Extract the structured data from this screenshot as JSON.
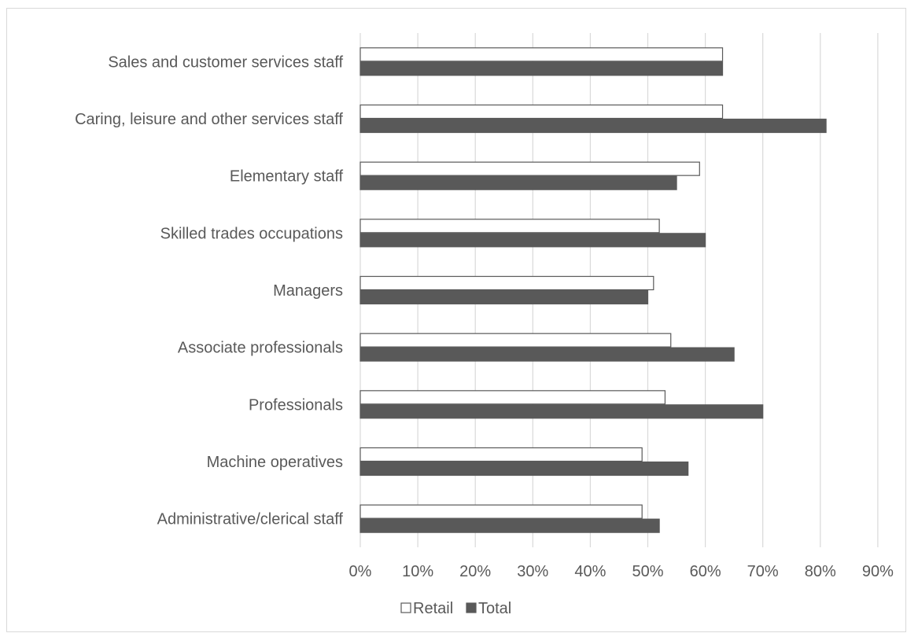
{
  "chart_data": {
    "type": "bar",
    "orientation": "horizontal",
    "categories": [
      "Sales and customer services staff",
      "Caring, leisure and other services staff",
      "Elementary staff",
      "Skilled trades occupations",
      "Managers",
      "Associate professionals",
      "Professionals",
      "Machine operatives",
      "Administrative/clerical staff"
    ],
    "series": [
      {
        "name": "Retail",
        "values": [
          63,
          63,
          59,
          52,
          51,
          54,
          53,
          49,
          49
        ]
      },
      {
        "name": "Total",
        "values": [
          63,
          81,
          55,
          60,
          50,
          65,
          70,
          57,
          52
        ]
      }
    ],
    "xlim": [
      0,
      90
    ],
    "xticks": [
      "0%",
      "10%",
      "20%",
      "30%",
      "40%",
      "50%",
      "60%",
      "70%",
      "80%",
      "90%"
    ],
    "grid": true,
    "legend_position": "bottom",
    "colors": {
      "Retail": "#ffffff",
      "Total": "#595959",
      "outline": "#595959",
      "grid": "#d9d9d9"
    },
    "title": "",
    "xlabel": "",
    "ylabel": ""
  }
}
